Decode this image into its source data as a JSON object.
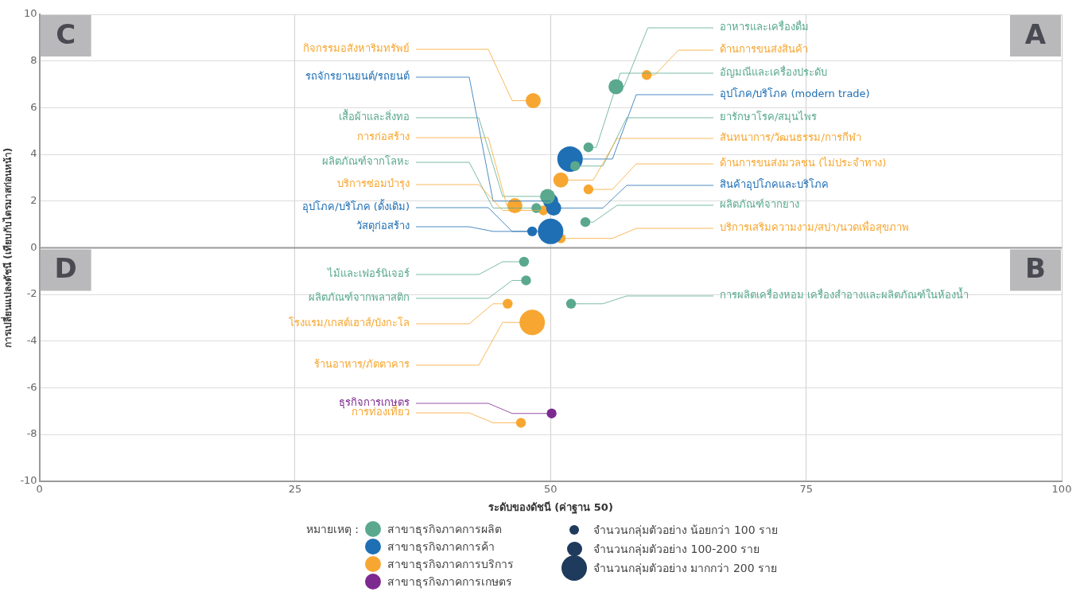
{
  "chart_data": {
    "type": "bubble",
    "xlabel": "ระดับของดัชนี (ค่าฐาน 50)",
    "ylabel": "การเปลี่ยนแปลงดัชนี (เทียบกับไตรมาสก่อนหน้า)",
    "legend_title": "หมายเหตุ :",
    "xlim": [
      0,
      100
    ],
    "xticks": [
      0,
      25,
      50,
      75,
      100
    ],
    "ylim": [
      -10,
      10
    ],
    "yticks": [
      -10,
      -8,
      -6,
      -4,
      -2,
      0,
      2,
      4,
      6,
      8,
      10
    ],
    "grid": true,
    "legend": "bottom",
    "ref_lines": [
      {
        "axis": "y",
        "value": 0,
        "color": "#9a9a9a"
      }
    ],
    "size_legend": [
      {
        "value": 0.15,
        "label": "จำนวนกลุ่มตัวอย่าง น้อยกว่า 100 ราย"
      },
      {
        "value": 0.35,
        "label": "จำนวนกลุ่มตัวอย่าง 100-200 ราย"
      },
      {
        "value": 1,
        "label": "จำนวนกลุ่มตัวอย่าง มากกว่า 200 ราย"
      }
    ],
    "series": [
      {
        "name": "สาขาธุรกิจภาคการผลิต",
        "color": "#5aa98f",
        "x": [
          56.4,
          53.7,
          52.4,
          53.4,
          49.7,
          48.6,
          47.4,
          47.6,
          52.0
        ],
        "values": [
          6.9,
          4.3,
          3.5,
          1.1,
          2.2,
          1.7,
          -0.6,
          -1.4,
          -2.4
        ],
        "sizes": [
          0.35,
          0.15,
          0.15,
          0.15,
          0.35,
          0.15,
          0.15,
          0.15,
          0.15
        ]
      },
      {
        "name": "สาขาธุรกิจภาคการค้า",
        "color": "#1f6fb4",
        "x": [
          51.9,
          50.3,
          50.0,
          48.2,
          50.0
        ],
        "values": [
          3.8,
          1.7,
          2.0,
          0.7,
          0.7
        ],
        "sizes": [
          1,
          0.35,
          0.35,
          0.15,
          1
        ]
      },
      {
        "name": "สาขาธุรกิจภาคการบริการ",
        "color": "#f7a731",
        "x": [
          48.3,
          59.4,
          51.0,
          53.7,
          46.5,
          49.3,
          51.0,
          45.8,
          48.2,
          47.1
        ],
        "values": [
          6.3,
          7.4,
          2.9,
          2.5,
          1.8,
          1.6,
          0.4,
          -2.4,
          -3.2,
          -7.5
        ],
        "sizes": [
          0.35,
          0.15,
          0.35,
          0.15,
          0.35,
          0.15,
          0.15,
          0.15,
          1,
          0.15
        ]
      },
      {
        "name": "สาขาธุรกิจภาคการเกษตร",
        "color": "#7d2a90",
        "x": [
          50.1
        ],
        "values": [
          -7.1
        ],
        "sizes": [
          0.15
        ]
      }
    ],
    "annotations": [
      "C",
      "A",
      "D",
      "B",
      {
        "text": "อาหารและเครื่องดื่ม",
        "x": 56.4,
        "y": 6.9
      },
      {
        "text": "ด้านการขนส่งสินค้า",
        "x": 59.4,
        "y": 7.4
      },
      {
        "text": "อัญมณีและเครื่องประดับ",
        "x": 53.7,
        "y": 4.3
      },
      {
        "text": "อุปโภค/บริโภค (modern trade)",
        "x": 51.9,
        "y": 3.8
      },
      {
        "text": "ยารักษาโรค/สมุนไพร",
        "x": 52.4,
        "y": 3.5
      },
      {
        "text": "สันทนาการ/วัฒนธรรม/การกีฬา",
        "x": 51.0,
        "y": 2.9
      },
      {
        "text": "ด้านการขนส่งมวลชน (ไม่ประจำทาง)",
        "x": 53.7,
        "y": 2.5
      },
      {
        "text": "สินค้าอุปโภคและบริโภค",
        "x": 50.3,
        "y": 1.7
      },
      {
        "text": "ผลิตภัณฑ์จากยาง",
        "x": 53.4,
        "y": 1.1
      },
      {
        "text": "บริการเสริมความงาม/สปา/นวดเพื่อสุขภาพ",
        "x": 51.0,
        "y": 0.4
      },
      {
        "text": "การผลิตเครื่องหอม เครื่องสำอางและผลิตภัณฑ์ในห้องน้ำ",
        "x": 52.0,
        "y": -2.4
      },
      {
        "text": "กิจกรรมอสังหาริมทรัพย์",
        "x": 48.3,
        "y": 6.3
      },
      {
        "text": "รถจักรยานยนต์/รถยนต์",
        "x": 50.0,
        "y": 2.0
      },
      {
        "text": "เสื้อผ้าและสิ่งทอ",
        "x": 49.7,
        "y": 2.2
      },
      {
        "text": "การก่อสร้าง",
        "x": 46.5,
        "y": 1.8
      },
      {
        "text": "ผลิตภัณฑ์จากโลหะ",
        "x": 48.6,
        "y": 1.7
      },
      {
        "text": "บริการซ่อมบำรุง",
        "x": 49.3,
        "y": 1.6
      },
      {
        "text": "อุปโภค/บริโภค (ดั้งเดิม)",
        "x": 48.2,
        "y": 0.7
      },
      {
        "text": "วัสดุก่อสร้าง",
        "x": 50.0,
        "y": 0.7
      },
      {
        "text": "ไม้และเฟอร์นิเจอร์",
        "x": 47.4,
        "y": -0.6
      },
      {
        "text": "ผลิตภัณฑ์จากพลาสติก",
        "x": 47.6,
        "y": -1.4
      },
      {
        "text": "โรงแรม/เกสต์เฮาส์/บังกะโล",
        "x": 45.8,
        "y": -2.4
      },
      {
        "text": "ร้านอาหาร/ภัตตาคาร",
        "x": 48.2,
        "y": -3.2
      },
      {
        "text": "ธุรกิจการเกษตร",
        "x": 50.1,
        "y": -7.1
      },
      {
        "text": "การท่องเที่ยว",
        "x": 47.1,
        "y": -7.5
      }
    ]
  }
}
